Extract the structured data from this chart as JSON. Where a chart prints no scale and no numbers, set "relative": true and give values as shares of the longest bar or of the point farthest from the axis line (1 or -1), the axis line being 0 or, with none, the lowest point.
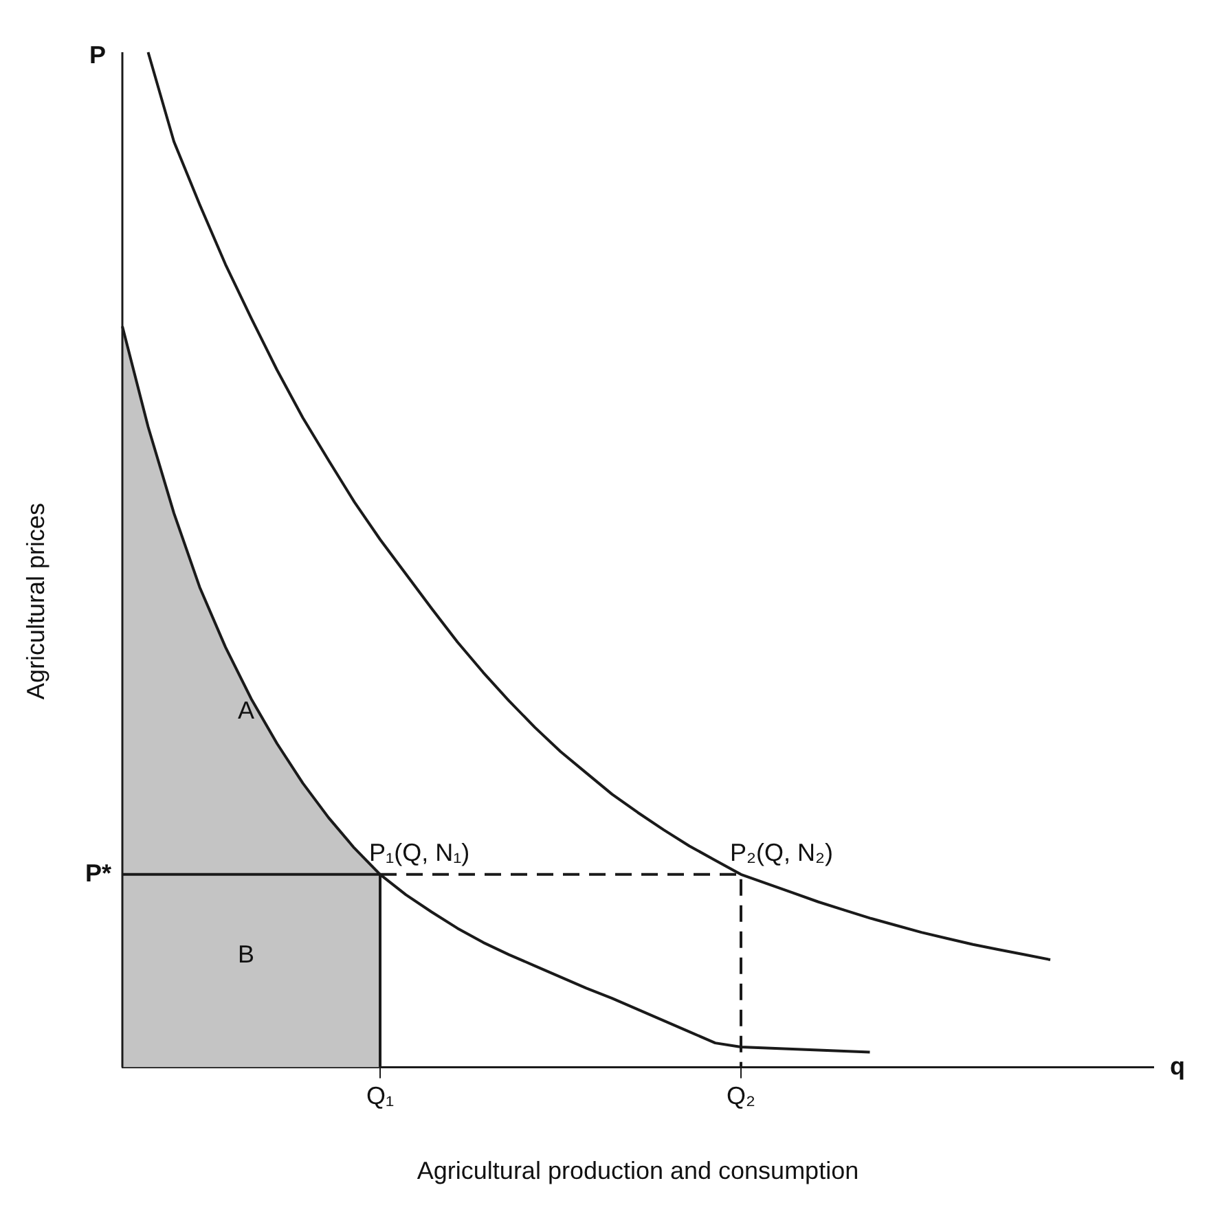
{
  "chart_data": {
    "type": "line",
    "relative": true,
    "xlabel": "Agricultural production and consumption",
    "ylabel": "Agricultural prices",
    "categories": [
      null,
      null,
      null,
      null,
      null,
      null,
      null,
      null,
      null,
      null,
      "Q₁",
      null,
      null,
      null,
      null,
      null,
      null,
      null,
      null,
      null,
      null,
      null,
      null,
      null,
      "Q₂",
      null,
      null,
      null,
      null,
      null,
      null,
      null,
      null,
      null,
      null,
      null,
      null,
      null,
      null,
      null,
      null
    ],
    "grid": false,
    "legend": false,
    "marker": "none",
    "series": [
      {
        "type": "area",
        "color": "#c4c4c4",
        "values": [
          0.73,
          0.631,
          0.546,
          0.473,
          0.414,
          0.363,
          0.319,
          0.28,
          0.246,
          0.216,
          0.19,
          null,
          null,
          null,
          null,
          null,
          null,
          null,
          null,
          null,
          null,
          null,
          null,
          null,
          null,
          null,
          null,
          null,
          null,
          null,
          null,
          null,
          null,
          null,
          null,
          null,
          null,
          null,
          null,
          null,
          null
        ]
      },
      {
        "color": "#1a1a1a",
        "line_style": "solid",
        "values": [
          null,
          1.0,
          0.912,
          0.85,
          0.791,
          0.738,
          0.687,
          0.64,
          0.598,
          0.557,
          0.52,
          0.486,
          0.452,
          0.419,
          0.389,
          0.361,
          0.335,
          0.311,
          0.29,
          0.269,
          0.251,
          0.234,
          0.218,
          0.204,
          0.19,
          0.181,
          0.172,
          0.163,
          0.155,
          0.147,
          0.14,
          0.133,
          0.127,
          0.121,
          0.116,
          0.111,
          0.106,
          null,
          null,
          null,
          null
        ]
      },
      {
        "color": "#1a1a1a",
        "line_style": "solid",
        "values": [
          0.73,
          0.631,
          0.546,
          0.473,
          0.414,
          0.363,
          0.319,
          0.28,
          0.246,
          0.216,
          0.19,
          0.17,
          0.153,
          0.137,
          0.123,
          0.111,
          0.1,
          0.089,
          0.078,
          0.068,
          0.057,
          0.046,
          0.035,
          0.024,
          0.02,
          0.019,
          0.018,
          0.017,
          0.016,
          0.015,
          null,
          null,
          null,
          null,
          null,
          null,
          null,
          null,
          null,
          null,
          null
        ]
      },
      {
        "color": "#1a1a1a",
        "line_style": "solid",
        "values": [
          0.19,
          0.19,
          0.19,
          0.19,
          0.19,
          0.19,
          0.19,
          0.19,
          0.19,
          0.19,
          0.19,
          null,
          null,
          null,
          null,
          null,
          null,
          null,
          null,
          null,
          null,
          null,
          null,
          null,
          null,
          null,
          null,
          null,
          null,
          null,
          null,
          null,
          null,
          null,
          null,
          null,
          null,
          null,
          null,
          null,
          null
        ]
      },
      {
        "color": "#1a1a1a",
        "line_style": "solid",
        "x": [
          "Q₁",
          "Q₁"
        ],
        "values": [
          0.19,
          0
        ]
      },
      {
        "color": "#1a1a1a",
        "line_style": "dashed",
        "x": [
          "Q₁",
          "Q₂",
          "Q₂"
        ],
        "values": [
          0.19,
          0.19,
          0
        ]
      }
    ],
    "annotations": [
      "P",
      "q",
      "A",
      "B",
      "P*",
      {
        "text": "P₁(Q, N₁)",
        "x": "Q₁",
        "y": 0.19
      },
      {
        "text": "P₂(Q, N₂)",
        "x": "Q₂",
        "y": 0.19
      }
    ]
  }
}
